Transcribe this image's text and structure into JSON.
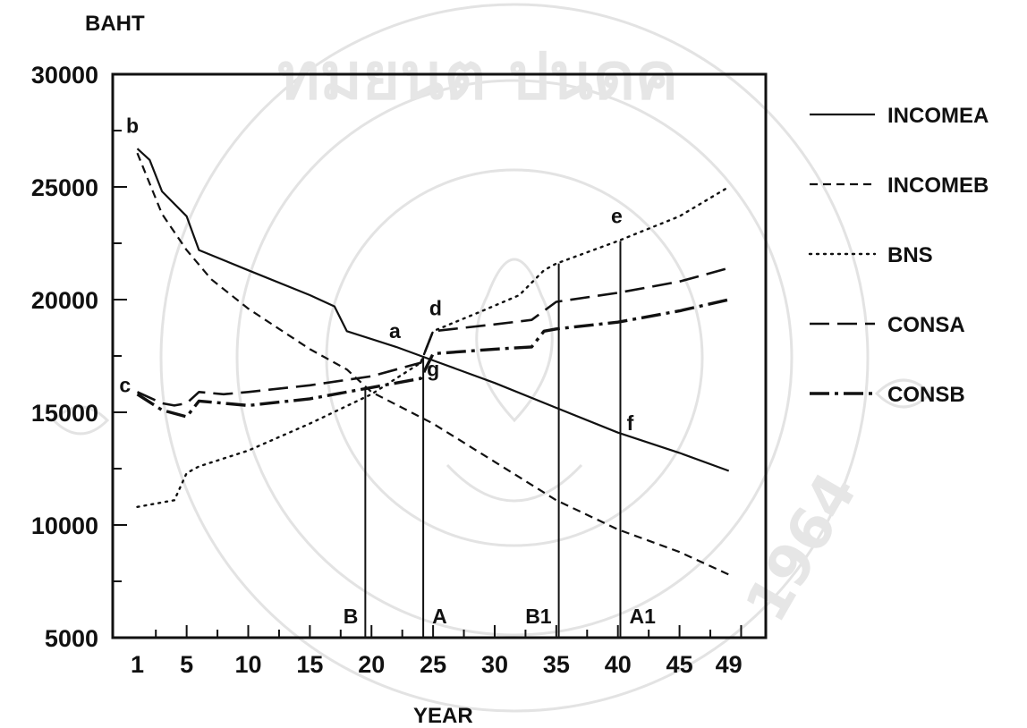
{
  "chart_data": {
    "type": "line",
    "ylabel": "BAHT",
    "xlabel": "YEAR",
    "x_ticks": [
      "1",
      "5",
      "10",
      "15",
      "20",
      "25",
      "30",
      "35",
      "40",
      "45",
      "49"
    ],
    "x_tick_values": [
      1,
      5,
      10,
      15,
      20,
      25,
      30,
      35,
      40,
      45,
      49
    ],
    "y_ticks": [
      "30000",
      "25000",
      "20000",
      "15000",
      "10000",
      "5000"
    ],
    "y_tick_values": [
      30000,
      25000,
      20000,
      15000,
      10000,
      5000
    ],
    "xlim": [
      -1,
      52
    ],
    "ylim": [
      5000,
      30000
    ],
    "grid": false,
    "legend_position": "right",
    "series": [
      {
        "name": "INCOMEA",
        "style": "solid",
        "x": [
          1,
          2,
          3,
          5,
          6,
          10,
          15,
          17,
          18,
          22,
          25,
          30,
          35,
          40,
          45,
          49
        ],
        "y": [
          26700,
          26200,
          24800,
          23700,
          22200,
          21300,
          20200,
          19700,
          18600,
          17900,
          17300,
          16300,
          15200,
          14100,
          13200,
          12400
        ]
      },
      {
        "name": "INCOMEB",
        "style": "dashed",
        "x": [
          1,
          3,
          5,
          7,
          10,
          15,
          18,
          20,
          25,
          30,
          35,
          40,
          45,
          49
        ],
        "y": [
          26500,
          23800,
          22200,
          20900,
          19600,
          17800,
          16900,
          15900,
          14500,
          12800,
          11100,
          9800,
          8800,
          7800
        ]
      },
      {
        "name": "BNS",
        "style": "dotted",
        "x": [
          1,
          4,
          5,
          6,
          10,
          15,
          20,
          24,
          25,
          29,
          32,
          34,
          35,
          40,
          45,
          49
        ],
        "y": [
          10800,
          11100,
          12300,
          12600,
          13300,
          14500,
          15800,
          17200,
          18600,
          19500,
          20200,
          21300,
          21600,
          22600,
          23700,
          25000
        ]
      },
      {
        "name": "CONSA",
        "style": "long-dash",
        "x": [
          1,
          3,
          4,
          5,
          6,
          8,
          10,
          15,
          20,
          24,
          25,
          30,
          33,
          35,
          40,
          45,
          49
        ],
        "y": [
          15900,
          15400,
          15300,
          15400,
          15900,
          15800,
          15900,
          16200,
          16600,
          17200,
          18600,
          18900,
          19100,
          19900,
          20300,
          20800,
          21400
        ]
      },
      {
        "name": "CONSB",
        "style": "dash-dot",
        "x": [
          1,
          3,
          5,
          6,
          10,
          15,
          20,
          24,
          25,
          30,
          33,
          34,
          35,
          40,
          45,
          49
        ],
        "y": [
          15800,
          15100,
          14800,
          15500,
          15300,
          15600,
          16100,
          16500,
          17600,
          17800,
          17900,
          18600,
          18700,
          19000,
          19500,
          20000
        ]
      }
    ],
    "vertical_lines": [
      {
        "label": "B",
        "x": 19.5,
        "y_top": 16000
      },
      {
        "label": "A",
        "x": 24.2,
        "y_top": 17500
      },
      {
        "label": "B1",
        "x": 35.2,
        "y_top": 21600
      },
      {
        "label": "A1",
        "x": 40.2,
        "y_top": 22600
      }
    ],
    "point_labels": [
      {
        "text": "b",
        "x": 0.6,
        "y": 27400
      },
      {
        "text": "c",
        "x": 0.0,
        "y": 15900
      },
      {
        "text": "a",
        "x": 21.9,
        "y": 18300
      },
      {
        "text": "d",
        "x": 25.2,
        "y": 19300
      },
      {
        "text": "g",
        "x": 25.0,
        "y": 16600
      },
      {
        "text": "e",
        "x": 39.9,
        "y": 23400
      },
      {
        "text": "f",
        "x": 41.0,
        "y": 14200
      }
    ]
  },
  "watermark": {
    "ring_text": "ทมยนต ปนดค",
    "year": "1964"
  }
}
